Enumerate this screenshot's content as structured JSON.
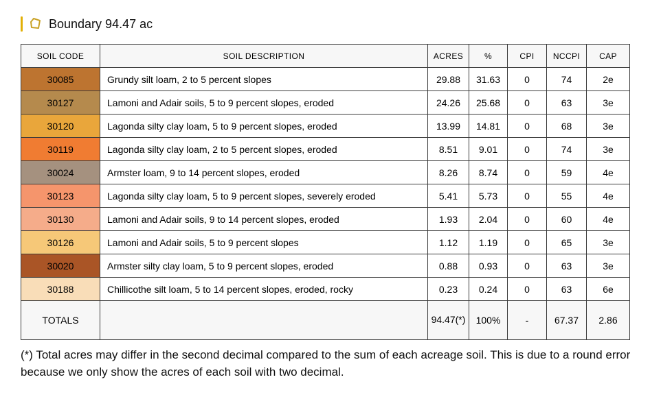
{
  "header": {
    "title": "Boundary 94.47 ac",
    "accent_color": "#e2b007",
    "icon_color": "#c9a227"
  },
  "table": {
    "columns": [
      "SOIL CODE",
      "SOIL DESCRIPTION",
      "ACRES",
      "%",
      "CPI",
      "NCCPI",
      "CAP"
    ],
    "rows": [
      {
        "code": "30085",
        "color": "#bd7430",
        "description": "Grundy silt loam, 2 to 5 percent slopes",
        "acres": "29.88",
        "percent": "31.63",
        "cpi": "0",
        "nccpi": "74",
        "cap": "2e"
      },
      {
        "code": "30127",
        "color": "#b58a4d",
        "description": "Lamoni and Adair soils, 5 to 9 percent slopes, eroded",
        "acres": "24.26",
        "percent": "25.68",
        "cpi": "0",
        "nccpi": "63",
        "cap": "3e"
      },
      {
        "code": "30120",
        "color": "#e9a63b",
        "description": "Lagonda silty clay loam, 5 to 9 percent slopes, eroded",
        "acres": "13.99",
        "percent": "14.81",
        "cpi": "0",
        "nccpi": "68",
        "cap": "3e"
      },
      {
        "code": "30119",
        "color": "#f07c32",
        "description": "Lagonda silty clay loam, 2 to 5 percent slopes, eroded",
        "acres": "8.51",
        "percent": "9.01",
        "cpi": "0",
        "nccpi": "74",
        "cap": "3e"
      },
      {
        "code": "30024",
        "color": "#a5917f",
        "description": "Armster loam, 9 to 14 percent slopes, eroded",
        "acres": "8.26",
        "percent": "8.74",
        "cpi": "0",
        "nccpi": "59",
        "cap": "4e"
      },
      {
        "code": "30123",
        "color": "#f5956c",
        "description": "Lagonda silty clay loam, 5 to 9 percent slopes, severely eroded",
        "acres": "5.41",
        "percent": "5.73",
        "cpi": "0",
        "nccpi": "55",
        "cap": "4e"
      },
      {
        "code": "30130",
        "color": "#f5ac8a",
        "description": "Lamoni and Adair soils, 9 to 14 percent slopes, eroded",
        "acres": "1.93",
        "percent": "2.04",
        "cpi": "0",
        "nccpi": "60",
        "cap": "4e"
      },
      {
        "code": "30126",
        "color": "#f6c878",
        "description": "Lamoni and Adair soils, 5 to 9 percent slopes",
        "acres": "1.12",
        "percent": "1.19",
        "cpi": "0",
        "nccpi": "65",
        "cap": "3e"
      },
      {
        "code": "30020",
        "color": "#aa5526",
        "description": "Armster silty clay loam, 5 to 9 percent slopes, eroded",
        "acres": "0.88",
        "percent": "0.93",
        "cpi": "0",
        "nccpi": "63",
        "cap": "3e"
      },
      {
        "code": "30188",
        "color": "#f9ddb8",
        "description": "Chillicothe silt loam, 5 to 14 percent slopes, eroded, rocky",
        "acres": "0.23",
        "percent": "0.24",
        "cpi": "0",
        "nccpi": "63",
        "cap": "6e"
      }
    ],
    "totals": {
      "label": "TOTALS",
      "description": "",
      "acres": "94.47(*)",
      "percent": "100%",
      "cpi": "-",
      "nccpi": "67.37",
      "cap": "2.86"
    }
  },
  "footnote": "(*) Total acres may differ in the second decimal compared to the sum of each acreage soil. This is due to a round error because we only show the acres of each soil with two decimal."
}
